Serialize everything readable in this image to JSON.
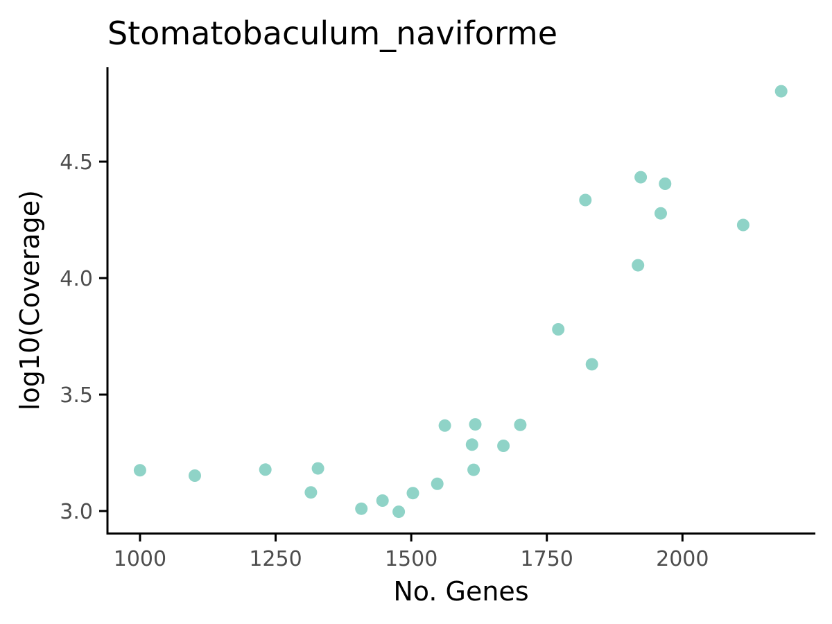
{
  "chart_data": {
    "type": "scatter",
    "title": "Stomatobaculum_naviforme",
    "xlabel": "No. Genes",
    "ylabel": "log10(Coverage)",
    "xlim": [
      940,
      2245
    ],
    "ylim": [
      2.905,
      4.905
    ],
    "x_ticks": [
      1000,
      1250,
      1500,
      1750,
      2000
    ],
    "x_tick_labels": [
      "1000",
      "1250",
      "1500",
      "1750",
      "2000"
    ],
    "y_ticks": [
      3.0,
      3.5,
      4.0,
      4.5
    ],
    "y_tick_labels": [
      "3.0",
      "3.5",
      "4.0",
      "4.5"
    ],
    "grid": false,
    "legend": "none",
    "point_color": "#8fd3c7",
    "points": [
      {
        "x": 1000,
        "y": 3.175
      },
      {
        "x": 1101,
        "y": 3.152
      },
      {
        "x": 1231,
        "y": 3.178
      },
      {
        "x": 1315,
        "y": 3.08
      },
      {
        "x": 1328,
        "y": 3.183
      },
      {
        "x": 1408,
        "y": 3.01
      },
      {
        "x": 1447,
        "y": 3.045
      },
      {
        "x": 1477,
        "y": 2.997
      },
      {
        "x": 1503,
        "y": 3.077
      },
      {
        "x": 1548,
        "y": 3.117
      },
      {
        "x": 1562,
        "y": 3.367
      },
      {
        "x": 1612,
        "y": 3.285
      },
      {
        "x": 1615,
        "y": 3.177
      },
      {
        "x": 1618,
        "y": 3.372
      },
      {
        "x": 1670,
        "y": 3.28
      },
      {
        "x": 1701,
        "y": 3.37
      },
      {
        "x": 1771,
        "y": 3.78
      },
      {
        "x": 1821,
        "y": 4.335
      },
      {
        "x": 1833,
        "y": 3.63
      },
      {
        "x": 1918,
        "y": 4.055
      },
      {
        "x": 1923,
        "y": 4.433
      },
      {
        "x": 1960,
        "y": 4.278
      },
      {
        "x": 1968,
        "y": 4.405
      },
      {
        "x": 2112,
        "y": 4.228
      },
      {
        "x": 2182,
        "y": 4.802
      }
    ]
  }
}
